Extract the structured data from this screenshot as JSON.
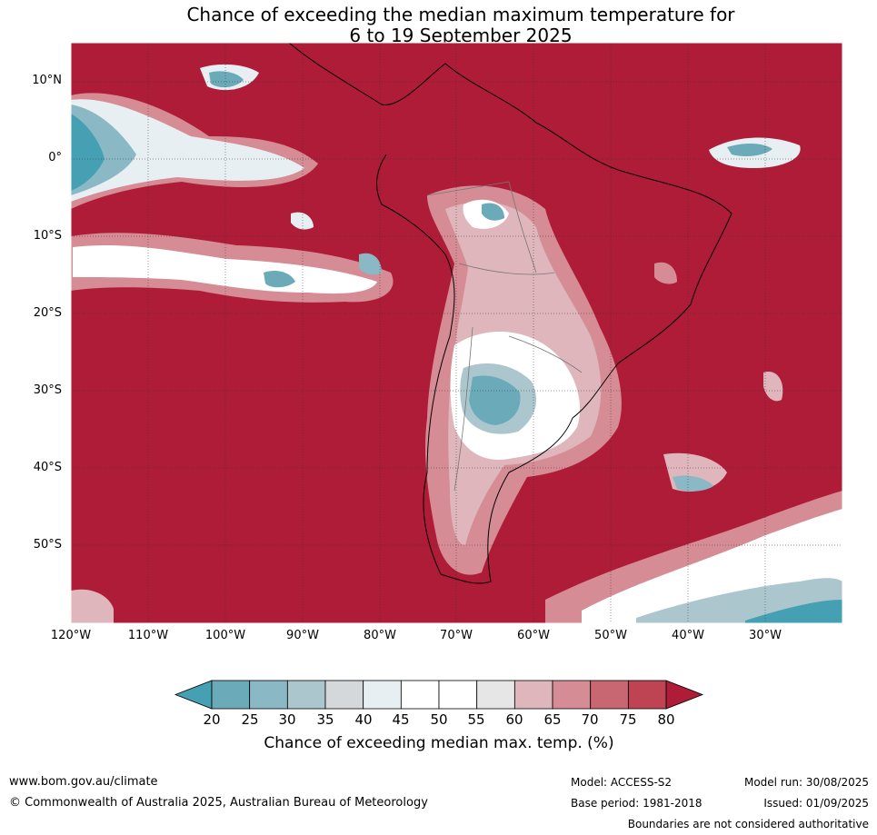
{
  "title": {
    "line1": "Chance of exceeding the median maximum temperature for",
    "line2": "6 to 19 September 2025"
  },
  "map": {
    "lat_labels": [
      "10°N",
      "0°",
      "10°S",
      "20°S",
      "30°S",
      "40°S",
      "50°S"
    ],
    "lon_labels": [
      "120°W",
      "110°W",
      "100°W",
      "90°W",
      "80°W",
      "70°W",
      "60°W",
      "50°W",
      "40°W",
      "30°W"
    ],
    "background_color": "#ae1c37"
  },
  "colorbar": {
    "ticks": [
      "20",
      "25",
      "30",
      "35",
      "40",
      "45",
      "50",
      "55",
      "60",
      "65",
      "70",
      "75",
      "80"
    ],
    "colors": [
      "#46a0b4",
      "#6baab8",
      "#8ab8c5",
      "#acc6cd",
      "#d4d8da",
      "#e8eff2",
      "#ffffff",
      "#ffffff",
      "#e6e6e6",
      "#e0b6bd",
      "#d58c95",
      "#c86671",
      "#be4453",
      "#ae1c37"
    ],
    "label": "Chance of exceeding median max. temp. (%)"
  },
  "footer": {
    "url": "www.bom.gov.au/climate",
    "copyright": "© Commonwealth of Australia 2025, Australian Bureau of Meteorology",
    "model": "Model: ACCESS-S2",
    "base_period": "Base period: 1981-2018",
    "model_run": "Model run: 30/08/2025",
    "issued": "Issued: 01/09/2025",
    "disclaimer": "Boundaries are not considered authoritative"
  }
}
